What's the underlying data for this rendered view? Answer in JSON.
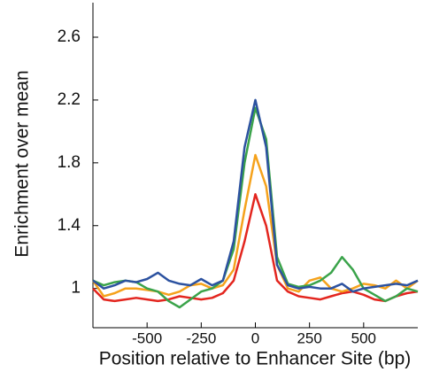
{
  "chart_data": {
    "type": "line",
    "x_label": "Position relative to Enhancer Site (bp)",
    "y_label": "Enrichment over mean",
    "x": [
      -750,
      -700,
      -650,
      -600,
      -550,
      -500,
      -450,
      -400,
      -350,
      -300,
      -250,
      -200,
      -150,
      -100,
      -50,
      0,
      50,
      100,
      150,
      200,
      250,
      300,
      350,
      400,
      450,
      500,
      550,
      600,
      650,
      700,
      750
    ],
    "series": [
      {
        "color": "#e3261f",
        "values": [
          1.0,
          0.93,
          0.92,
          0.93,
          0.94,
          0.93,
          0.92,
          0.93,
          0.95,
          0.94,
          0.93,
          0.94,
          0.97,
          1.05,
          1.3,
          1.6,
          1.4,
          1.05,
          0.98,
          0.95,
          0.94,
          0.93,
          0.95,
          0.97,
          0.98,
          0.96,
          0.93,
          0.92,
          0.95,
          0.97,
          0.98
        ]
      },
      {
        "color": "#f5a21c",
        "values": [
          1.05,
          0.95,
          0.97,
          1.0,
          1.0,
          0.99,
          0.98,
          0.96,
          0.98,
          1.02,
          1.03,
          1.0,
          1.02,
          1.12,
          1.5,
          1.85,
          1.65,
          1.15,
          1.0,
          0.98,
          1.05,
          1.07,
          1.0,
          0.98,
          1.0,
          1.03,
          1.02,
          1.0,
          1.05,
          1.0,
          1.05
        ]
      },
      {
        "color": "#3aa34a",
        "values": [
          1.05,
          1.02,
          1.04,
          1.05,
          1.04,
          1.0,
          0.98,
          0.92,
          0.88,
          0.93,
          0.98,
          1.0,
          1.05,
          1.25,
          1.8,
          2.15,
          1.95,
          1.2,
          1.03,
          1.01,
          1.02,
          1.05,
          1.1,
          1.2,
          1.12,
          1.0,
          0.96,
          0.92,
          0.95,
          1.0,
          0.98
        ]
      },
      {
        "color": "#2c52a0",
        "values": [
          1.05,
          1.0,
          1.02,
          1.05,
          1.04,
          1.06,
          1.1,
          1.05,
          1.03,
          1.02,
          1.06,
          1.02,
          1.05,
          1.3,
          1.9,
          2.2,
          1.9,
          1.15,
          1.02,
          1.0,
          1.01,
          1.0,
          1.0,
          1.03,
          0.98,
          1.0,
          1.01,
          1.02,
          1.03,
          1.02,
          1.05
        ]
      }
    ],
    "xlim": [
      -750,
      750
    ],
    "xticks": [
      -500,
      -250,
      0,
      250,
      500
    ],
    "ylim": [
      0.75,
      2.82
    ],
    "yticks": [
      1,
      1.4,
      1.8,
      2.2,
      2.6
    ]
  }
}
